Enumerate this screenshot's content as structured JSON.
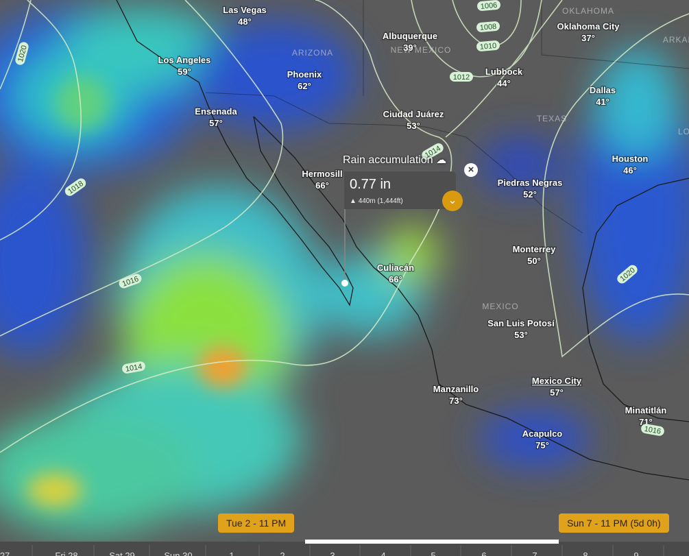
{
  "cities": [
    {
      "name": "Las Vegas",
      "temp": "48°"
    },
    {
      "name": "Los Angeles",
      "temp": "59°"
    },
    {
      "name": "Phoenix",
      "temp": "62°"
    },
    {
      "name": "Ensenada",
      "temp": "57°"
    },
    {
      "name": "Albuquerque",
      "temp": "39°"
    },
    {
      "name": "Oklahoma City",
      "temp": "37°"
    },
    {
      "name": "Lubbock",
      "temp": "44°"
    },
    {
      "name": "Dallas",
      "temp": "41°"
    },
    {
      "name": "Ciudad Juárez",
      "temp": "53°"
    },
    {
      "name": "Hermosill",
      "temp": "66°"
    },
    {
      "name": "Houston",
      "temp": "46°"
    },
    {
      "name": "Piedras Negras",
      "temp": "52°"
    },
    {
      "name": "Monterrey",
      "temp": "50°"
    },
    {
      "name": "Culiacán",
      "temp": "66°"
    },
    {
      "name": "San Luis Potosí",
      "temp": "53°"
    },
    {
      "name": "Mexico City",
      "temp": "57°"
    },
    {
      "name": "Manzanillo",
      "temp": "73°"
    },
    {
      "name": "Minatitlán",
      "temp": "71°"
    },
    {
      "name": "Acapulco",
      "temp": "75°"
    }
  ],
  "regions": [
    "ARIZONA",
    "NEW MEXICO",
    "OKLAHOMA",
    "TEXAS",
    "MEXICO",
    "ARKAN",
    "LO"
  ],
  "isobars": [
    "1006",
    "1008",
    "1010",
    "1012",
    "1014",
    "1020",
    "1018",
    "1016",
    "1014",
    "1020",
    "1016"
  ],
  "popup": {
    "title": "Rain accumulation",
    "value": "0.77 in",
    "elevation": "440m (1,444ft)"
  },
  "timeline": {
    "start": "Tue 2 - 11 PM",
    "end": "Sun 7 - 11 PM (5d 0h)",
    "days": [
      "27",
      "Fri 28",
      "Sat 29",
      "Sun 30",
      "1",
      "2",
      "3",
      "4",
      "5",
      "6",
      "7",
      "8",
      "9"
    ]
  }
}
